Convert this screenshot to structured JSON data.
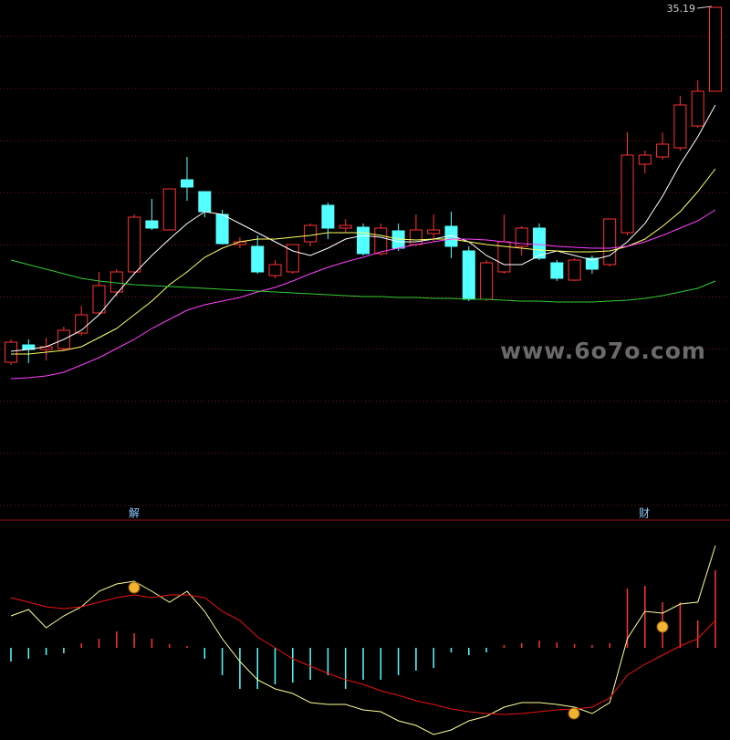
{
  "chart_data": [
    {
      "type": "candlestick",
      "open": [
        19.62,
        20.38,
        20.18,
        20.22,
        20.9,
        21.78,
        22.7,
        23.58,
        25.82,
        25.42,
        27.62,
        27.1,
        26.1,
        24.78,
        24.7,
        23.42,
        23.58,
        24.9,
        26.5,
        25.5,
        25.54,
        24.38,
        25.38,
        24.78,
        25.26,
        25.58,
        24.5,
        22.38,
        23.58,
        24.7,
        25.5,
        23.98,
        23.22,
        24.18,
        23.9,
        25.3,
        28.3,
        28.62,
        29.02,
        29.98,
        31.5
      ],
      "high": [
        20.62,
        20.62,
        20.7,
        21.18,
        22.1,
        23.58,
        23.7,
        26.1,
        26.78,
        27.22,
        28.62,
        27.1,
        26.3,
        25.1,
        25.18,
        24.1,
        24.78,
        25.7,
        26.62,
        25.9,
        25.7,
        25.7,
        25.7,
        26.1,
        26.1,
        26.22,
        24.7,
        24.1,
        26.1,
        25.58,
        25.7,
        24.1,
        24.18,
        24.3,
        25.9,
        29.7,
        28.9,
        29.7,
        31.3,
        31.98,
        35.19
      ],
      "low": [
        19.5,
        19.58,
        19.7,
        20.1,
        20.78,
        21.7,
        22.5,
        23.5,
        25.42,
        25.42,
        26.7,
        25.98,
        24.78,
        24.62,
        23.5,
        23.3,
        23.5,
        24.7,
        25.02,
        25.3,
        24.3,
        24.3,
        24.5,
        24.7,
        24.9,
        24.18,
        22.3,
        22.3,
        23.5,
        24.3,
        24.1,
        23.18,
        23.18,
        23.5,
        23.82,
        25.18,
        27.9,
        28.5,
        28.9,
        29.9,
        31.5
      ],
      "close": [
        20.5,
        20.18,
        20.3,
        21.02,
        21.7,
        22.98,
        23.58,
        25.98,
        25.5,
        27.22,
        27.3,
        26.22,
        24.82,
        24.9,
        23.58,
        23.9,
        24.78,
        25.62,
        25.5,
        25.62,
        24.38,
        25.5,
        24.62,
        25.42,
        25.42,
        24.7,
        22.38,
        23.98,
        24.9,
        25.5,
        24.18,
        23.3,
        24.1,
        23.7,
        25.9,
        28.7,
        28.7,
        29.18,
        30.9,
        31.5,
        35.18
      ],
      "up_color": "#ff3232",
      "down_color": "#54ffff",
      "ylim": [
        12.9,
        35.5
      ],
      "series": [
        {
          "color": "#ffffff",
          "values": [
            20.1,
            20.18,
            20.3,
            20.62,
            21.02,
            21.7,
            22.62,
            23.5,
            24.3,
            25.02,
            25.7,
            26.22,
            26.1,
            25.7,
            25.3,
            24.9,
            24.5,
            24.3,
            24.62,
            25.02,
            25.18,
            25.1,
            24.9,
            24.9,
            25.02,
            25.18,
            24.9,
            24.3,
            23.9,
            23.9,
            24.3,
            24.5,
            24.3,
            24.1,
            24.3,
            24.9,
            25.7,
            26.9,
            28.3,
            29.5,
            30.9
          ]
        },
        {
          "color": "#ffff66",
          "values": [
            19.98,
            19.98,
            20.06,
            20.14,
            20.3,
            20.7,
            21.1,
            21.7,
            22.3,
            23.02,
            23.58,
            24.22,
            24.62,
            24.9,
            25.02,
            25.02,
            25.1,
            25.18,
            25.3,
            25.3,
            25.3,
            25.18,
            25.02,
            24.98,
            25.02,
            25.02,
            24.9,
            24.78,
            24.7,
            24.62,
            24.54,
            24.5,
            24.46,
            24.46,
            24.5,
            24.7,
            25.02,
            25.58,
            26.22,
            27.1,
            28.1
          ]
        },
        {
          "color": "#ff40ff",
          "values": [
            18.9,
            18.94,
            19.02,
            19.18,
            19.5,
            19.82,
            20.22,
            20.62,
            21.1,
            21.5,
            21.9,
            22.14,
            22.3,
            22.46,
            22.7,
            22.9,
            23.18,
            23.5,
            23.78,
            24.02,
            24.22,
            24.46,
            24.62,
            24.78,
            24.9,
            25.02,
            25.02,
            24.98,
            24.9,
            24.82,
            24.78,
            24.7,
            24.66,
            24.62,
            24.62,
            24.7,
            24.9,
            25.18,
            25.5,
            25.82,
            26.3
          ]
        },
        {
          "color": "#33cc33",
          "values": [
            24.1,
            23.9,
            23.7,
            23.5,
            23.3,
            23.18,
            23.1,
            23.02,
            22.98,
            22.94,
            22.9,
            22.86,
            22.82,
            22.78,
            22.74,
            22.7,
            22.66,
            22.62,
            22.58,
            22.54,
            22.5,
            22.5,
            22.46,
            22.46,
            22.42,
            22.42,
            22.38,
            22.38,
            22.34,
            22.3,
            22.3,
            22.26,
            22.26,
            22.26,
            22.3,
            22.34,
            22.42,
            22.54,
            22.7,
            22.86,
            23.18
          ]
        }
      ],
      "watermark": "www.6o7o.com"
    },
    {
      "type": "macd",
      "histogram": [
        -0.15,
        -0.12,
        -0.08,
        -0.06,
        0.05,
        0.1,
        0.18,
        0.16,
        0.1,
        0.04,
        0.02,
        -0.12,
        -0.3,
        -0.45,
        -0.45,
        -0.4,
        -0.38,
        -0.35,
        -0.3,
        -0.45,
        -0.35,
        -0.35,
        -0.3,
        -0.25,
        -0.22,
        -0.05,
        -0.08,
        -0.05,
        0.03,
        0.05,
        0.08,
        0.06,
        0.04,
        0.03,
        0.05,
        0.65,
        0.68,
        0.5,
        0.5,
        0.3,
        0.85
      ],
      "up_color": "#ff3232",
      "down_color": "#54ffff",
      "ylim": [
        -1.01,
        1.4
      ],
      "series": [
        {
          "color": "#ffff99",
          "values": [
            0.35,
            0.42,
            0.22,
            0.35,
            0.45,
            0.62,
            0.7,
            0.73,
            0.62,
            0.5,
            0.62,
            0.4,
            0.1,
            -0.15,
            -0.35,
            -0.45,
            -0.5,
            -0.6,
            -0.62,
            -0.62,
            -0.68,
            -0.7,
            -0.8,
            -0.85,
            -0.95,
            -0.9,
            -0.8,
            -0.75,
            -0.65,
            -0.6,
            -0.6,
            -0.62,
            -0.65,
            -0.72,
            -0.6,
            0.1,
            0.4,
            0.38,
            0.48,
            0.5,
            1.12
          ]
        },
        {
          "color": "#ee1111",
          "values": [
            0.55,
            0.5,
            0.45,
            0.43,
            0.45,
            0.5,
            0.55,
            0.58,
            0.55,
            0.58,
            0.58,
            0.55,
            0.4,
            0.3,
            0.12,
            0.0,
            -0.12,
            -0.2,
            -0.28,
            -0.35,
            -0.4,
            -0.47,
            -0.52,
            -0.58,
            -0.62,
            -0.67,
            -0.7,
            -0.72,
            -0.73,
            -0.72,
            -0.7,
            -0.68,
            -0.67,
            -0.65,
            -0.55,
            -0.3,
            -0.18,
            -0.08,
            0.02,
            0.1,
            0.3
          ]
        }
      ],
      "annotations": [
        "解",
        "财"
      ]
    }
  ]
}
